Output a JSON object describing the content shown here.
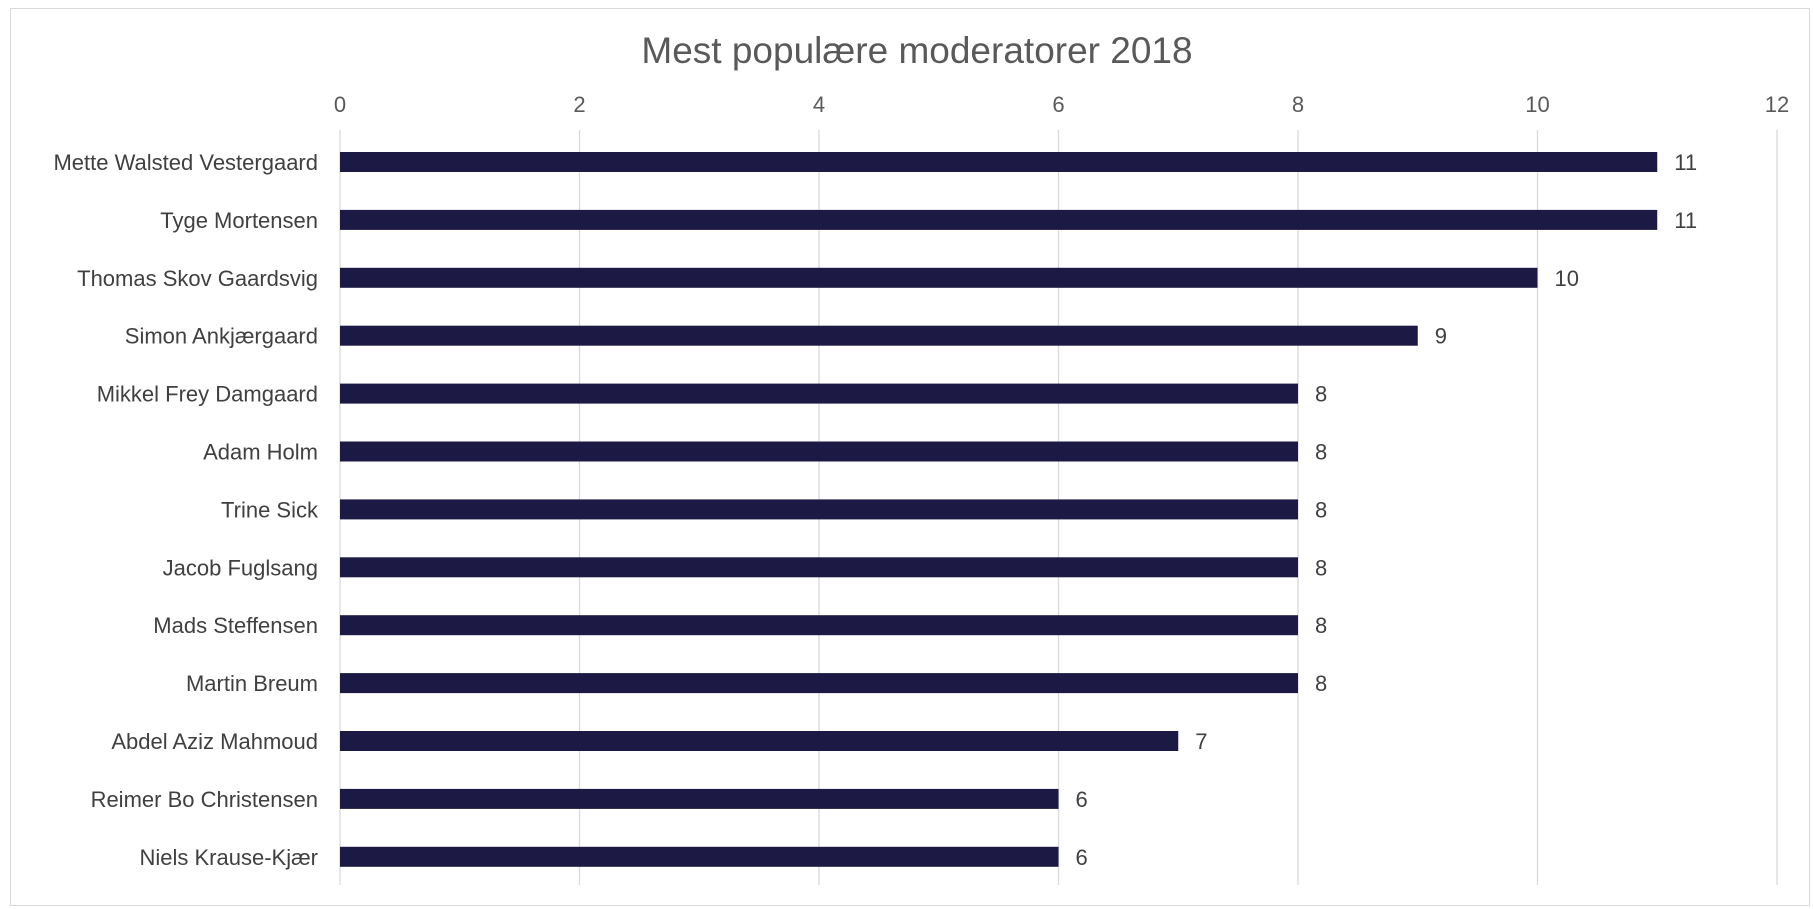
{
  "chart_data": {
    "type": "bar",
    "orientation": "horizontal",
    "title": "Mest populære moderatorer 2018",
    "xlabel": "",
    "ylabel": "",
    "xlim": [
      0,
      12
    ],
    "x_ticks": [
      "0",
      "2",
      "4",
      "6",
      "8",
      "10",
      "12"
    ],
    "x_axis_position": "top",
    "grid": true,
    "legend": "none",
    "bar_color": "#1c1a45",
    "categories": [
      "Mette Walsted Vestergaard",
      "Tyge Mortensen",
      "Thomas Skov Gaardsvig",
      "Simon Ankjærgaard",
      "Mikkel Frey Damgaard",
      "Adam Holm",
      "Trine Sick",
      "Jacob Fuglsang",
      "Mads Steffensen",
      "Martin Breum",
      "Abdel Aziz Mahmoud",
      "Reimer Bo Christensen",
      "Niels Krause-Kjær"
    ],
    "values": [
      11,
      11,
      10,
      9,
      8,
      8,
      8,
      8,
      8,
      8,
      7,
      6,
      6
    ],
    "data_labels": [
      "11",
      "11",
      "10",
      "9",
      "8",
      "8",
      "8",
      "8",
      "8",
      "8",
      "7",
      "6",
      "6"
    ]
  }
}
